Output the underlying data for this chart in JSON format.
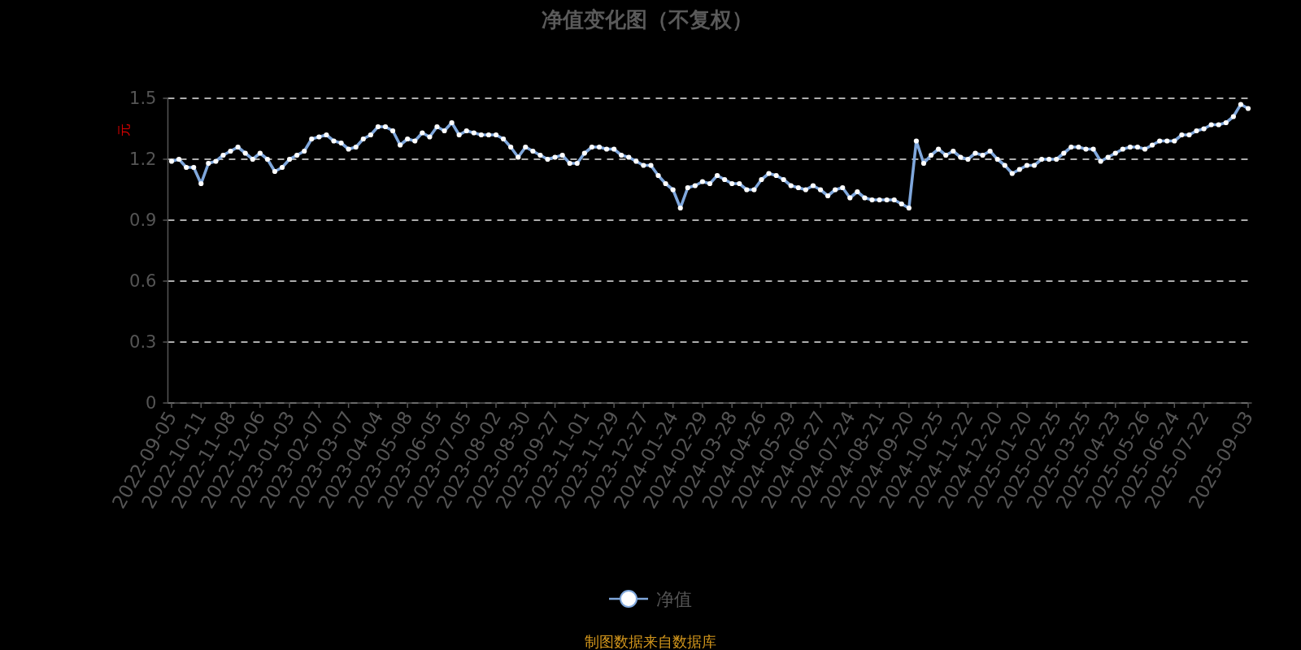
{
  "chart_data": {
    "type": "line",
    "title": "净值变化图（不复权）",
    "ylabel": "元",
    "categories": [
      "2022-09-05",
      null,
      null,
      null,
      "2022-10-11",
      null,
      null,
      null,
      "2022-11-08",
      null,
      null,
      null,
      "2022-12-06",
      null,
      null,
      null,
      "2023-01-03",
      null,
      null,
      null,
      "2023-02-07",
      null,
      null,
      null,
      "2023-03-07",
      null,
      null,
      null,
      "2023-04-04",
      null,
      null,
      null,
      "2023-05-08",
      null,
      null,
      null,
      "2023-06-05",
      null,
      null,
      null,
      "2023-07-05",
      null,
      null,
      null,
      "2023-08-02",
      null,
      null,
      null,
      "2023-08-30",
      null,
      null,
      null,
      "2023-09-27",
      null,
      null,
      null,
      "2023-11-01",
      null,
      null,
      null,
      "2023-11-29",
      null,
      null,
      null,
      "2023-12-27",
      null,
      null,
      null,
      "2024-01-24",
      null,
      null,
      null,
      "2024-02-29",
      null,
      null,
      null,
      "2024-03-28",
      null,
      null,
      null,
      "2024-04-26",
      null,
      null,
      null,
      "2024-05-29",
      null,
      null,
      null,
      "2024-06-27",
      null,
      null,
      null,
      "2024-07-24",
      null,
      null,
      null,
      "2024-08-21",
      null,
      null,
      null,
      "2024-09-20",
      null,
      null,
      null,
      "2024-10-25",
      null,
      null,
      null,
      "2024-11-22",
      null,
      null,
      null,
      "2024-12-20",
      null,
      null,
      null,
      "2025-01-20",
      null,
      null,
      null,
      "2025-02-25",
      null,
      null,
      null,
      "2025-03-25",
      null,
      null,
      null,
      "2025-04-23",
      null,
      null,
      null,
      "2025-05-26",
      null,
      null,
      null,
      "2025-06-24",
      null,
      null,
      null,
      "2025-07-22",
      null,
      null,
      null,
      null,
      null,
      "2025-09-03"
    ],
    "series": [
      {
        "name": "净值",
        "color": "#7fa7dc",
        "values": [
          1.19,
          1.2,
          1.16,
          1.16,
          1.08,
          1.18,
          1.19,
          1.22,
          1.24,
          1.26,
          1.23,
          1.2,
          1.23,
          1.2,
          1.14,
          1.16,
          1.2,
          1.22,
          1.24,
          1.3,
          1.31,
          1.32,
          1.29,
          1.28,
          1.25,
          1.26,
          1.3,
          1.32,
          1.36,
          1.36,
          1.34,
          1.27,
          1.3,
          1.29,
          1.33,
          1.31,
          1.36,
          1.34,
          1.38,
          1.32,
          1.34,
          1.33,
          1.32,
          1.32,
          1.32,
          1.3,
          1.26,
          1.21,
          1.26,
          1.24,
          1.22,
          1.2,
          1.21,
          1.22,
          1.18,
          1.18,
          1.23,
          1.26,
          1.26,
          1.25,
          1.25,
          1.22,
          1.21,
          1.19,
          1.17,
          1.17,
          1.12,
          1.08,
          1.05,
          0.96,
          1.06,
          1.07,
          1.09,
          1.08,
          1.12,
          1.1,
          1.08,
          1.08,
          1.05,
          1.05,
          1.1,
          1.13,
          1.12,
          1.1,
          1.07,
          1.06,
          1.05,
          1.07,
          1.05,
          1.02,
          1.05,
          1.06,
          1.01,
          1.04,
          1.01,
          1.0,
          1.0,
          1.0,
          1.0,
          0.98,
          0.96,
          1.29,
          1.18,
          1.22,
          1.25,
          1.22,
          1.24,
          1.21,
          1.2,
          1.23,
          1.22,
          1.24,
          1.2,
          1.17,
          1.13,
          1.15,
          1.17,
          1.17,
          1.2,
          1.2,
          1.2,
          1.23,
          1.26,
          1.26,
          1.25,
          1.25,
          1.19,
          1.21,
          1.23,
          1.25,
          1.26,
          1.26,
          1.25,
          1.27,
          1.29,
          1.29,
          1.29,
          1.32,
          1.32,
          1.34,
          1.35,
          1.37,
          1.37,
          1.38,
          1.41,
          1.47,
          1.45
        ]
      }
    ],
    "ylim": [
      0,
      1.5
    ],
    "yticks": [
      0,
      0.3,
      0.6,
      0.9,
      1.2,
      1.5
    ],
    "grid": "y",
    "legend": "bottom",
    "marker": "circle",
    "annotations": [
      "制图数据来自数据库"
    ]
  }
}
